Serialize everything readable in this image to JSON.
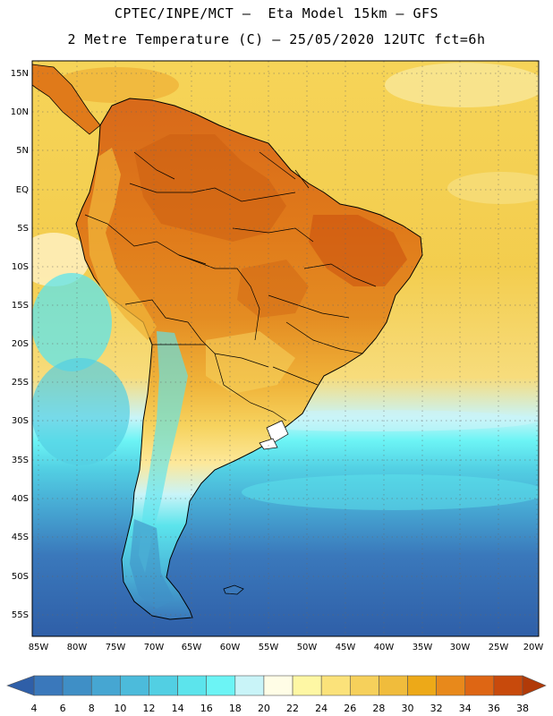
{
  "title": {
    "line1": "CPTEC/INPE/MCT –  Eta Model 15km – GFS",
    "line2": "2 Metre Temperature (C) – 25/05/2020 12UTC fct=6h"
  },
  "axes": {
    "lat_labels": [
      "15N",
      "10N",
      "5N",
      "EQ",
      "5S",
      "10S",
      "15S",
      "20S",
      "25S",
      "30S",
      "35S",
      "40S",
      "45S",
      "50S",
      "55S"
    ],
    "lon_labels": [
      "85W",
      "80W",
      "75W",
      "70W",
      "65W",
      "60W",
      "55W",
      "50W",
      "45W",
      "40W",
      "35W",
      "30W",
      "25W",
      "20W"
    ]
  },
  "colorbar": {
    "labels": [
      "4",
      "6",
      "8",
      "10",
      "12",
      "14",
      "16",
      "18",
      "20",
      "22",
      "24",
      "26",
      "28",
      "30",
      "32",
      "34",
      "36",
      "38"
    ],
    "colors": [
      "#2f5fa8",
      "#3a78bb",
      "#3f8fc6",
      "#46a6d2",
      "#4cbbdb",
      "#52cfe3",
      "#5ce4ec",
      "#6cf4f5",
      "#c9f4f8",
      "#fffde6",
      "#fef7a4",
      "#fbe27a",
      "#f6d05b",
      "#f0bc3c",
      "#eda918",
      "#e8891b",
      "#de6614",
      "#c84a0c",
      "#b13a08"
    ]
  },
  "palette": {
    "land_warm": "#e07a1a",
    "land_hot": "#cc5e12",
    "land_mild": "#efb43a",
    "ocean_warm": "#f5d255",
    "ocean_cool": "#4cbbdb",
    "ocean_cold": "#2f5fa8"
  }
}
